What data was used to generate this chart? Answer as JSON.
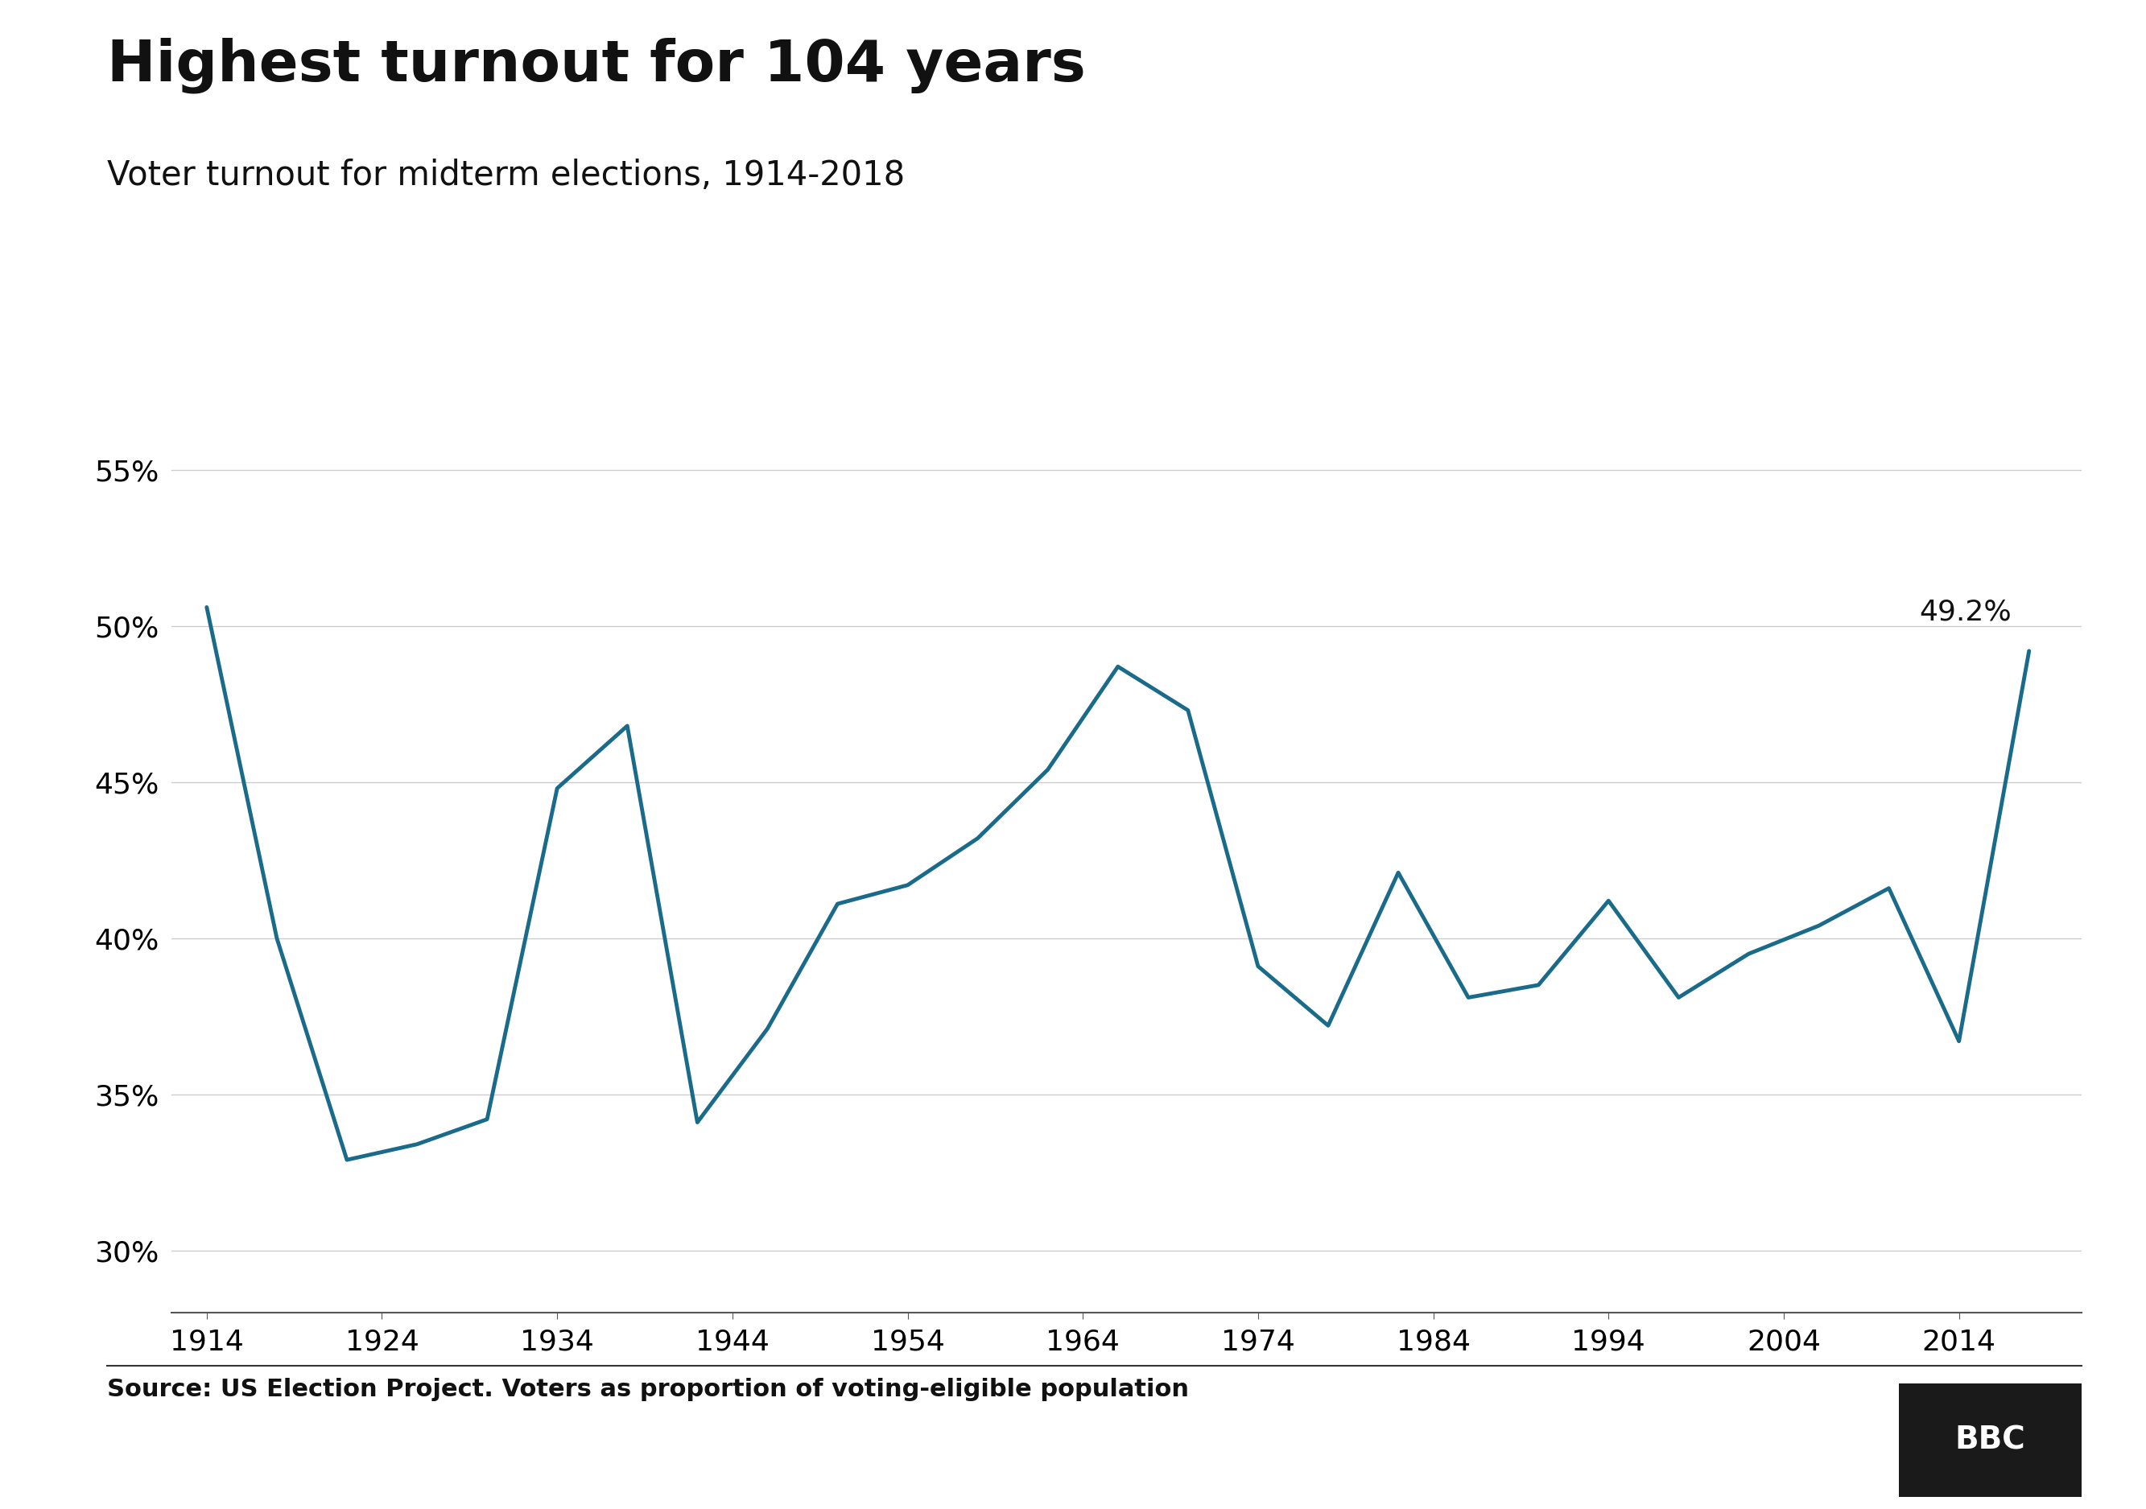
{
  "title": "Highest turnout for 104 years",
  "subtitle": "Voter turnout for midterm elections, 1914-2018",
  "source_text": "Source: US Election Project. Voters as proportion of voting-eligible population",
  "years": [
    1914,
    1918,
    1922,
    1926,
    1930,
    1934,
    1938,
    1942,
    1946,
    1950,
    1954,
    1958,
    1962,
    1966,
    1970,
    1974,
    1978,
    1982,
    1986,
    1990,
    1994,
    1998,
    2002,
    2006,
    2010,
    2014,
    2018
  ],
  "turnout": [
    50.6,
    40.0,
    32.9,
    33.4,
    34.2,
    44.8,
    46.8,
    34.1,
    37.1,
    41.1,
    41.7,
    43.2,
    45.4,
    48.7,
    47.3,
    39.1,
    37.2,
    42.1,
    38.1,
    38.5,
    41.2,
    38.1,
    39.5,
    40.4,
    41.6,
    36.7,
    49.2
  ],
  "line_color": "#1a6b8a",
  "line_width": 3.5,
  "annotation_label": "49.2%",
  "annotation_year": 2018,
  "annotation_value": 49.2,
  "bg_color": "#ffffff",
  "grid_color": "#cccccc",
  "yticks": [
    30,
    35,
    40,
    45,
    50,
    55
  ],
  "ytick_labels": [
    "30%",
    "35%",
    "40%",
    "45%",
    "50%",
    "55%"
  ],
  "xticks": [
    1914,
    1924,
    1934,
    1944,
    1954,
    1964,
    1974,
    1984,
    1994,
    2004,
    2014
  ],
  "ylim": [
    28,
    57
  ],
  "xlim": [
    1912,
    2021
  ],
  "title_fontsize": 52,
  "subtitle_fontsize": 30,
  "tick_fontsize": 26,
  "source_fontsize": 22,
  "annotation_fontsize": 26,
  "bbc_box_color": "#1a1a1a",
  "bbc_text_color": "#ffffff",
  "bbc_fontsize": 28
}
